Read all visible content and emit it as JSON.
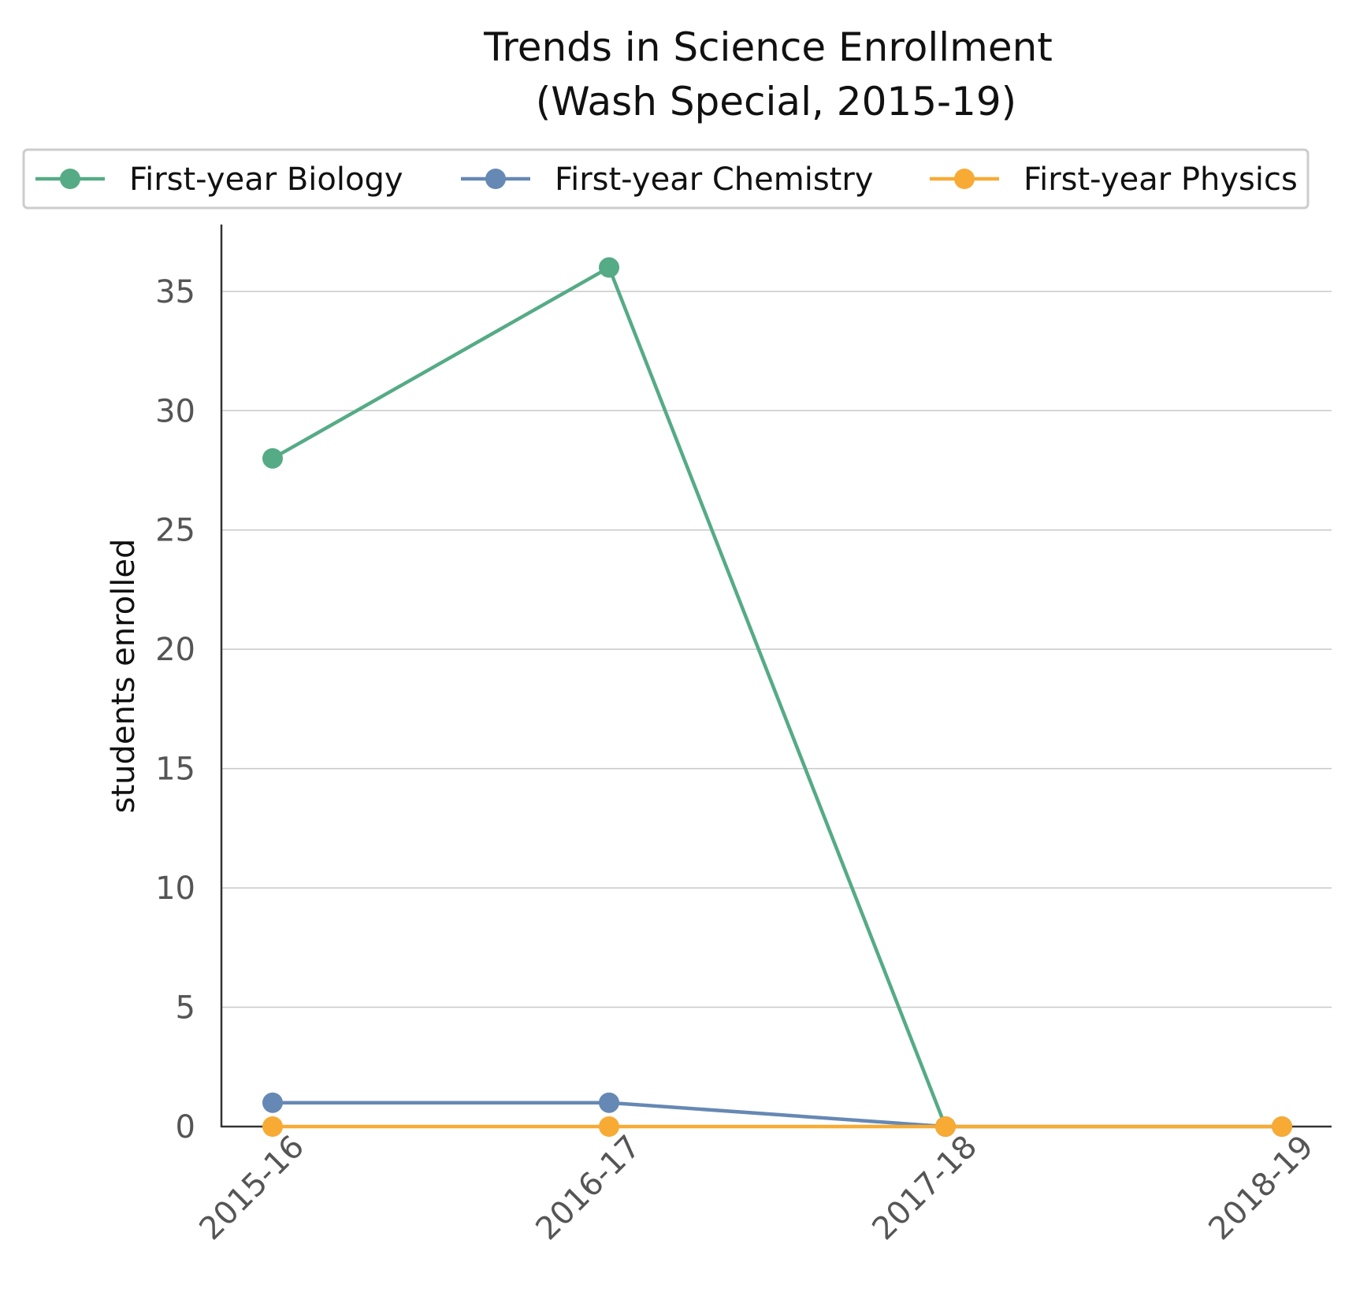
{
  "chart_data": {
    "type": "line",
    "title_line1": "Trends in Science Enrollment",
    "title_line2": "(Wash Special, 2015-19)",
    "xlabel": "",
    "ylabel": "students enrolled",
    "categories": [
      "2015-16",
      "2016-17",
      "2017-18",
      "2018-19"
    ],
    "ylim": [
      0,
      37.8
    ],
    "yticks": [
      0,
      5,
      10,
      15,
      20,
      25,
      30,
      35
    ],
    "grid": "horizontal",
    "legend_position": "top",
    "series": [
      {
        "name": "First-year Biology",
        "color": "#55ab86",
        "values": [
          28,
          36,
          0,
          null
        ]
      },
      {
        "name": "First-year Chemistry",
        "color": "#6688b4",
        "values": [
          1,
          1,
          0,
          0
        ]
      },
      {
        "name": "First-year Physics",
        "color": "#f7ab35",
        "values": [
          0,
          0,
          0,
          0
        ]
      }
    ]
  }
}
